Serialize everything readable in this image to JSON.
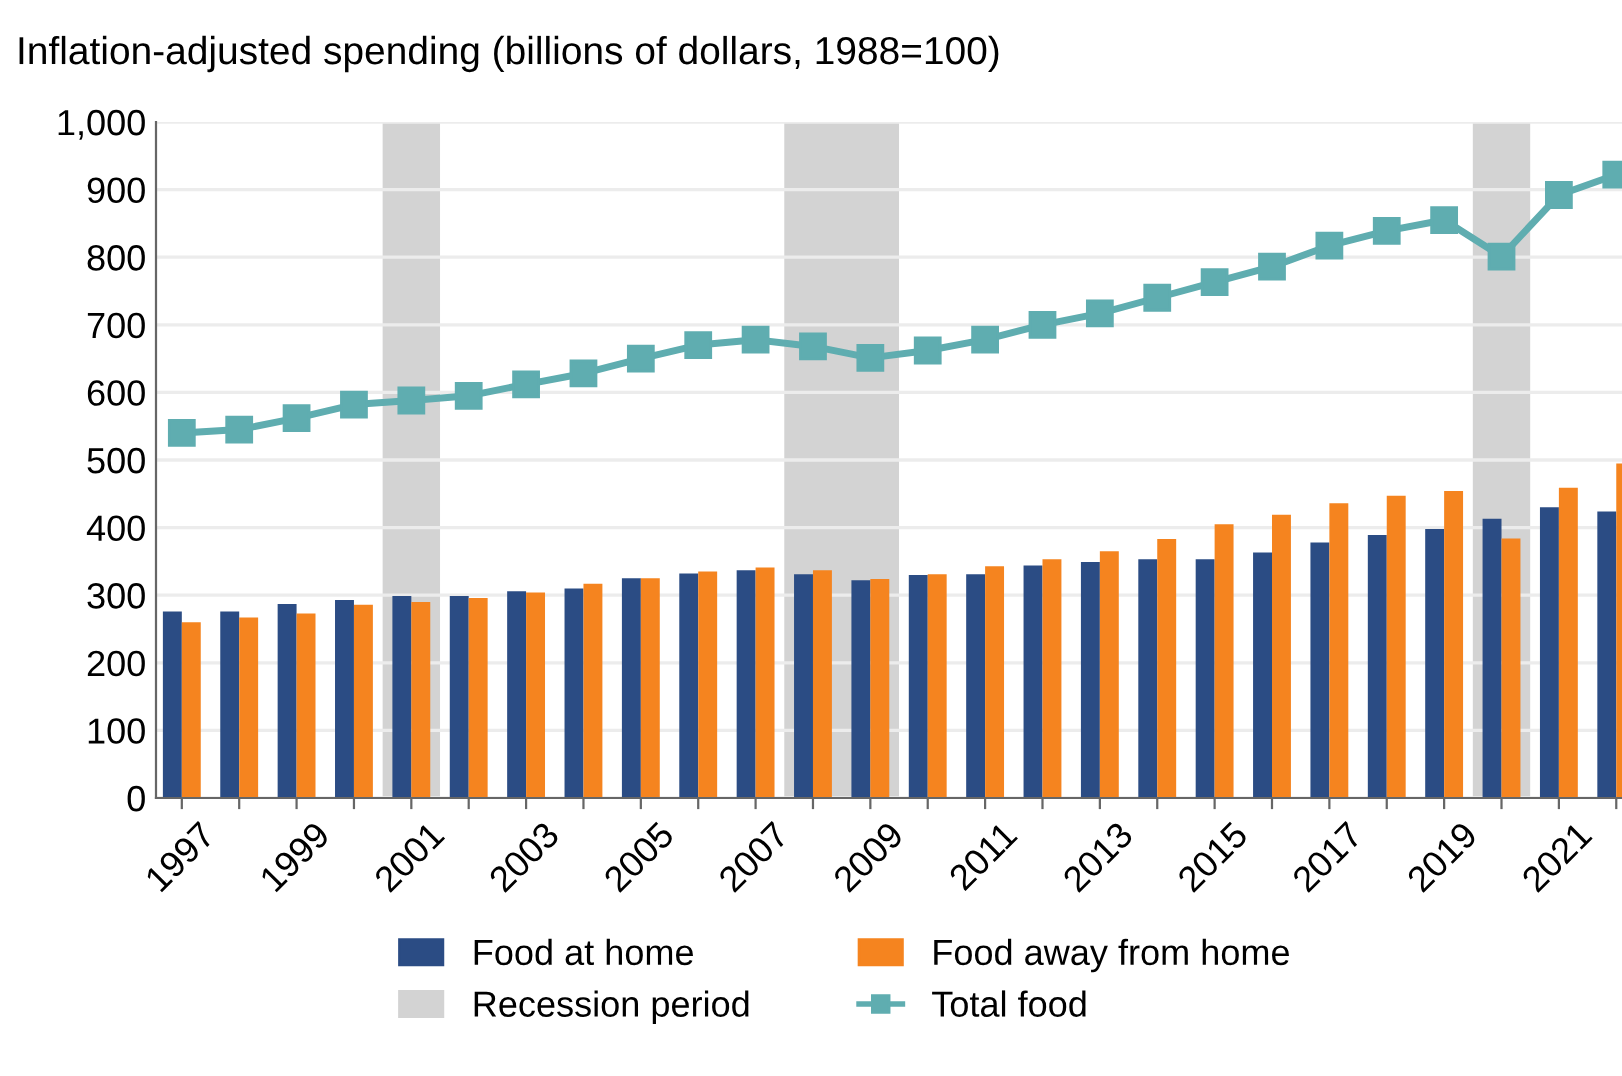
{
  "chart_data": {
    "type": "bar",
    "title": "Inflation-adjusted spending (billions of dollars, 1988=100)",
    "x": [
      1997,
      1998,
      1999,
      2000,
      2001,
      2002,
      2003,
      2004,
      2005,
      2006,
      2007,
      2008,
      2009,
      2010,
      2011,
      2012,
      2013,
      2014,
      2015,
      2016,
      2017,
      2018,
      2019,
      2020,
      2021,
      2022
    ],
    "series": [
      {
        "name": "Food at home",
        "color": "#2b4c84",
        "values": [
          276,
          276,
          287,
          293,
          299,
          299,
          306,
          310,
          325,
          332,
          337,
          331,
          322,
          330,
          331,
          344,
          349,
          353,
          353,
          363,
          378,
          389,
          398,
          413,
          430,
          424
        ]
      },
      {
        "name": "Food away from home",
        "color": "#f5841f",
        "values": [
          260,
          267,
          273,
          286,
          290,
          296,
          304,
          317,
          325,
          335,
          341,
          337,
          324,
          331,
          343,
          353,
          365,
          383,
          405,
          419,
          436,
          447,
          454,
          384,
          459,
          495
        ]
      },
      {
        "name": "Total food",
        "type": "line",
        "color": "#5fadb0",
        "marker": "square",
        "values": [
          540,
          545,
          562,
          582,
          588,
          595,
          612,
          628,
          650,
          670,
          678,
          668,
          651,
          662,
          678,
          700,
          717,
          740,
          763,
          786,
          817,
          839,
          855,
          801,
          892,
          922
        ]
      }
    ],
    "bands": [
      {
        "axis": "x",
        "from": 2000.5,
        "to": 2001.5,
        "color": "#d3d3d3",
        "label": "Recession period"
      },
      {
        "axis": "x",
        "from": 2007.5,
        "to": 2009.5,
        "color": "#d3d3d3"
      },
      {
        "axis": "x",
        "from": 2019.5,
        "to": 2020.5,
        "color": "#d3d3d3"
      }
    ],
    "xlim": [
      1996.55,
      2022.1
    ],
    "xticks": [
      1997,
      {
        "value": 1998,
        "label": null
      },
      1999,
      {
        "value": 2000,
        "label": null
      },
      2001,
      {
        "value": 2002,
        "label": null
      },
      2003,
      {
        "value": 2004,
        "label": null
      },
      2005,
      {
        "value": 2006,
        "label": null
      },
      2007,
      {
        "value": 2008,
        "label": null
      },
      2009,
      {
        "value": 2010,
        "label": null
      },
      2011,
      {
        "value": 2012,
        "label": null
      },
      2013,
      {
        "value": 2014,
        "label": null
      },
      2015,
      {
        "value": 2016,
        "label": null
      },
      2017,
      {
        "value": 2018,
        "label": null
      },
      2019,
      {
        "value": 2020,
        "label": null
      },
      2021,
      {
        "value": 2022,
        "label": null
      }
    ],
    "ylim": [
      0,
      1000
    ],
    "yticks": [
      0,
      100,
      200,
      300,
      400,
      500,
      600,
      700,
      800,
      900,
      {
        "value": 1000,
        "label": "1,000"
      }
    ],
    "grid": "y",
    "legend": "bottom"
  }
}
